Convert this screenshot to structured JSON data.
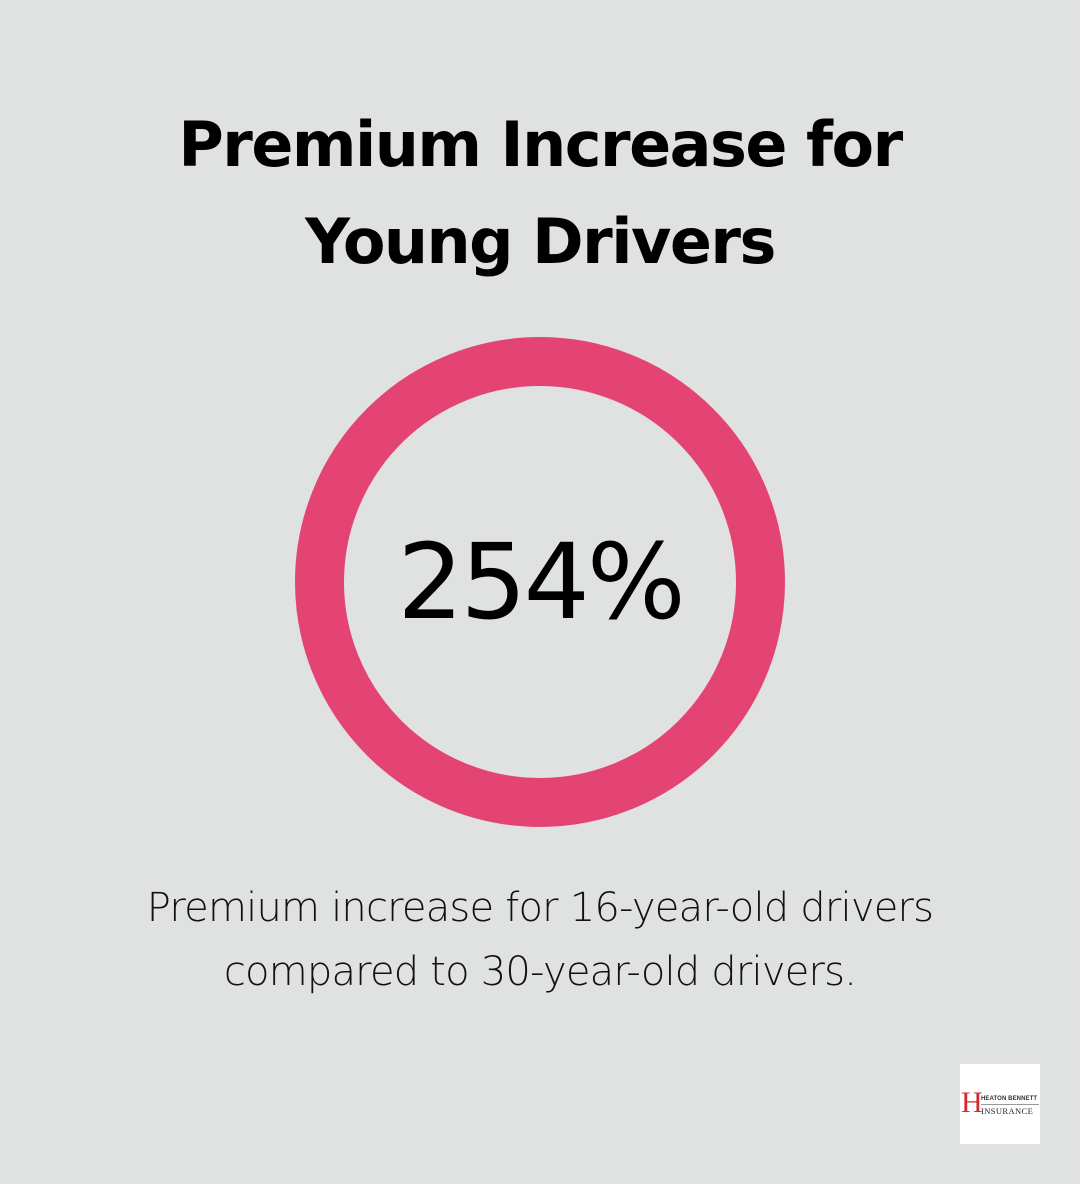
{
  "title": {
    "line1": "Premium Increase for",
    "line2": "Young Drivers"
  },
  "stat": {
    "value": "254%"
  },
  "description": {
    "line1": "Premium increase for 16-year-old drivers",
    "line2": "compared to 30-year-old drivers."
  },
  "logo": {
    "initial": "H",
    "line1": "HEATON BENNETT",
    "line2": "INSURANCE"
  },
  "colors": {
    "background": "#e0e2e1",
    "ring": "#e44474",
    "text": "#000000",
    "logo_accent": "#d42a2e"
  },
  "chart_data": {
    "type": "pie",
    "title": "Premium Increase for Young Drivers",
    "subtitle": "Premium increase for 16-year-old drivers compared to 30-year-old drivers.",
    "values": [
      254
    ],
    "labels": [
      "254%"
    ],
    "unit": "%",
    "style": "single full ring (donut) with central value label",
    "legend": "none",
    "grid": false
  }
}
